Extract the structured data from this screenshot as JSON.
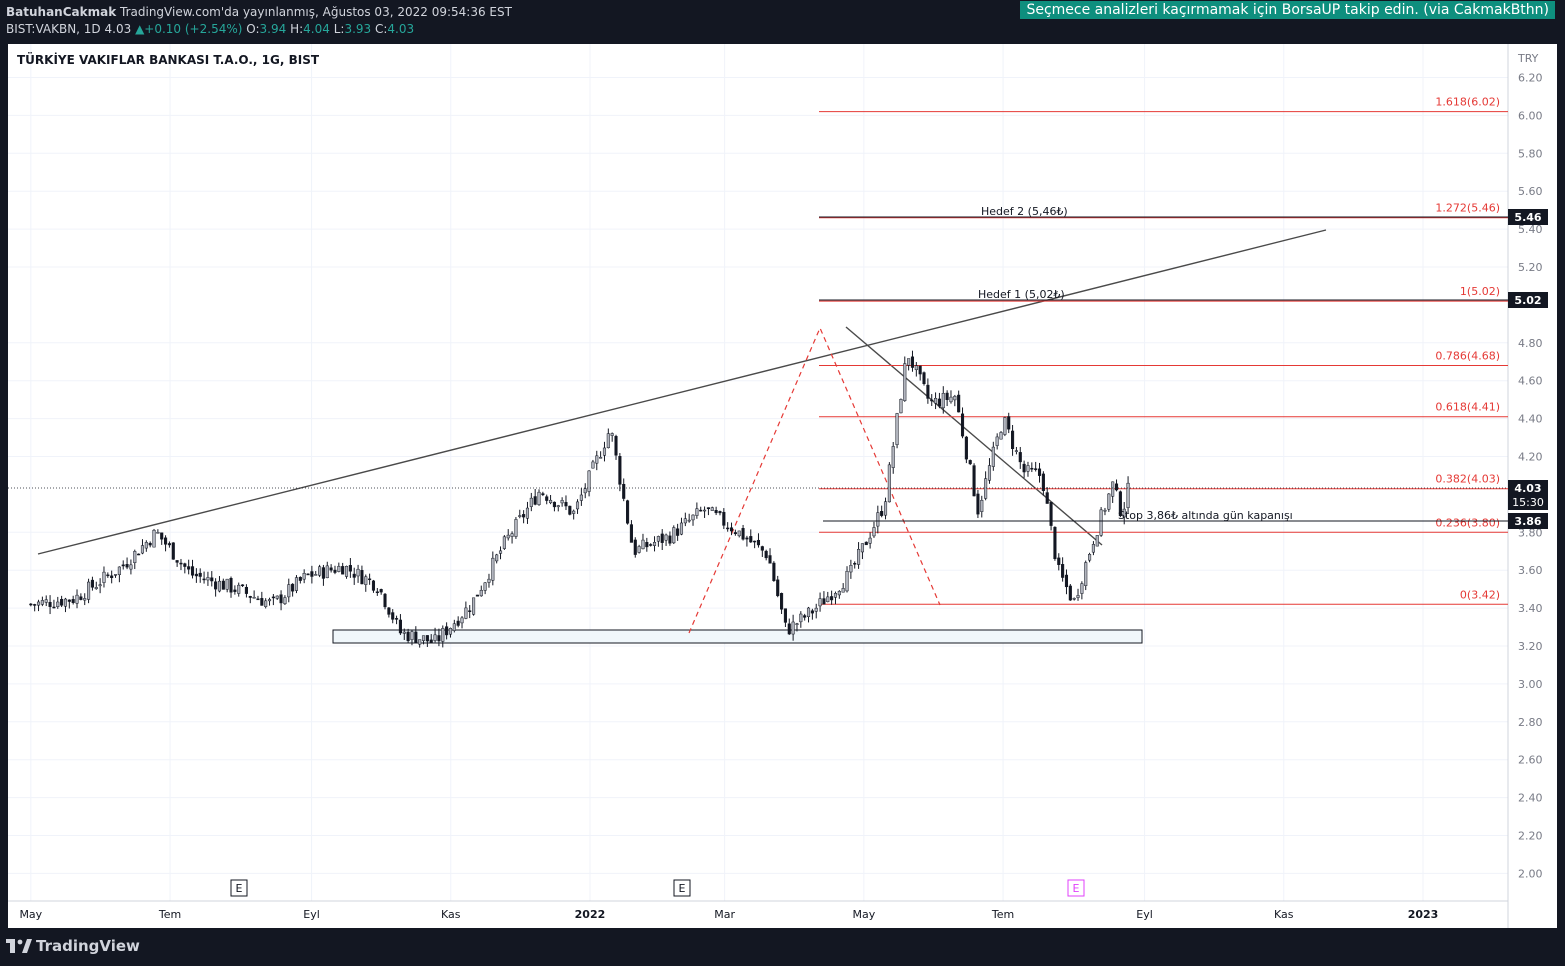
{
  "header": {
    "author": "BatuhanCakmak",
    "published": "TradingView.com'da yayınlanmış, Ağustos 03, 2022 09:54:36 EST",
    "symbol_line": "BIST:VAKBN, 1D",
    "last": "4.03",
    "change": "▲+0.10 (+2.54%)",
    "o_label": "O:",
    "o_value": "3.94",
    "h_label": "H:",
    "h_value": "4.04",
    "l_label": "L:",
    "l_value": "3.93",
    "c_label": "C:",
    "c_value": "4.03",
    "promo": "Seçmece analizleri kaçırmamak için BorsaUP takip edin. (via CakmakBthn)"
  },
  "chart_data": {
    "type": "candlestick",
    "title": "TÜRKİYE VAKIFLAR BANKASI T.A.O., 1G, BIST",
    "currency": "TRY",
    "y_ticks": [
      "6.20",
      "6.00",
      "5.80",
      "5.60",
      "5.40",
      "5.20",
      "4.80",
      "4.60",
      "4.40",
      "4.20",
      "3.80",
      "3.60",
      "3.40",
      "3.20",
      "3.00",
      "2.80",
      "2.60",
      "2.40",
      "2.20",
      "2.00"
    ],
    "x_ticks": [
      "May",
      "Tem",
      "Eyl",
      "Kas",
      "2022",
      "Mar",
      "May",
      "Tem",
      "Eyl",
      "Kas",
      "2023"
    ],
    "fib_levels": [
      "1.618(6.02)",
      "1.272(5.46)",
      "1(5.02)",
      "0.786(4.68)",
      "0.618(4.41)",
      "0.382(4.03)",
      "0.236(3.80)",
      "0(3.42)"
    ],
    "annotations": {
      "target2": "Hedef 2 (5,46₺)",
      "target1": "Hedef 1 (5,02₺)",
      "stop": "Stop 3,86₺ altında gün kapanışı"
    },
    "price_tags": {
      "target2": "5.46",
      "target1": "5.02",
      "last": "4.03",
      "countdown": "15:30",
      "stop": "3.86"
    },
    "earnings_markers": [
      "E",
      "E",
      "E"
    ],
    "price_path": [
      [
        "2021-05-01",
        3.42
      ],
      [
        "2021-05-20",
        3.45
      ],
      [
        "2021-06-10",
        3.62
      ],
      [
        "2021-06-25",
        3.8
      ],
      [
        "2021-07-10",
        3.58
      ],
      [
        "2021-07-30",
        3.5
      ],
      [
        "2021-08-15",
        3.42
      ],
      [
        "2021-08-30",
        3.57
      ],
      [
        "2021-09-15",
        3.62
      ],
      [
        "2021-09-30",
        3.52
      ],
      [
        "2021-10-10",
        3.27
      ],
      [
        "2021-10-25",
        3.22
      ],
      [
        "2021-11-10",
        3.42
      ],
      [
        "2021-11-25",
        3.75
      ],
      [
        "2021-12-10",
        4.02
      ],
      [
        "2021-12-25",
        3.9
      ],
      [
        "2022-01-10",
        4.35
      ],
      [
        "2022-01-20",
        3.7
      ],
      [
        "2022-02-05",
        3.78
      ],
      [
        "2022-02-20",
        3.92
      ],
      [
        "2022-03-05",
        3.82
      ],
      [
        "2022-03-20",
        3.68
      ],
      [
        "2022-03-28",
        3.28
      ],
      [
        "2022-04-10",
        3.4
      ],
      [
        "2022-04-25",
        3.58
      ],
      [
        "2022-05-10",
        3.95
      ],
      [
        "2022-05-20",
        4.75
      ],
      [
        "2022-05-30",
        4.48
      ],
      [
        "2022-06-10",
        4.52
      ],
      [
        "2022-06-20",
        3.92
      ],
      [
        "2022-07-01",
        4.4
      ],
      [
        "2022-07-10",
        4.12
      ],
      [
        "2022-07-18",
        4.1
      ],
      [
        "2022-07-25",
        3.6
      ],
      [
        "2022-08-01",
        3.43
      ],
      [
        "2022-08-10",
        3.78
      ],
      [
        "2022-08-18",
        4.05
      ],
      [
        "2022-08-22",
        3.9
      ],
      [
        "2022-08-25",
        4.03
      ]
    ]
  }
}
